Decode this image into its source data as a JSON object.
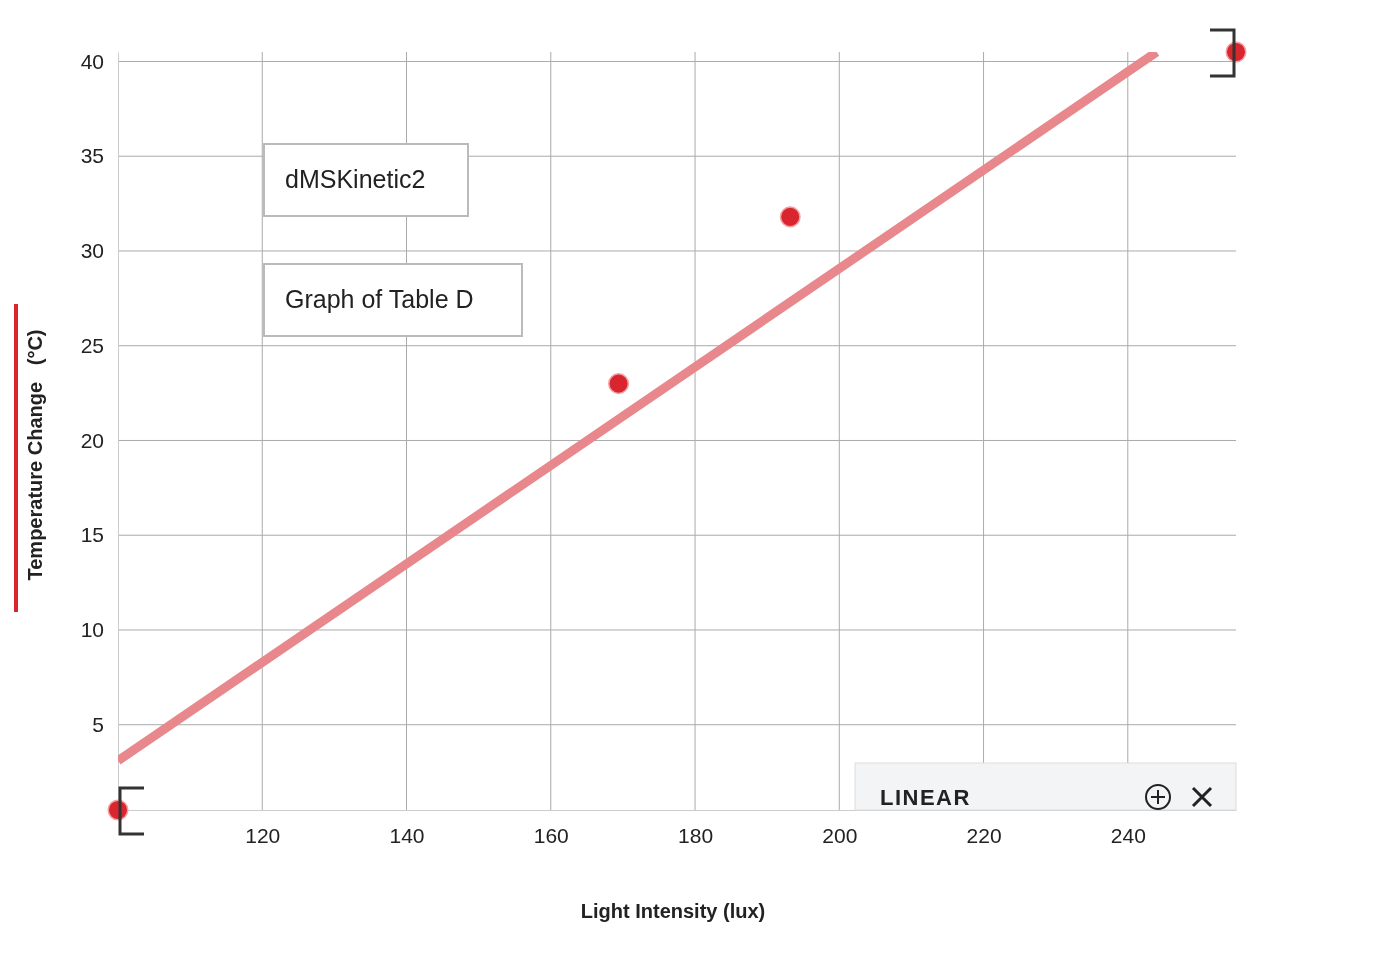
{
  "chart_data": {
    "type": "scatter",
    "xlabel": "Light Intensity (lux)",
    "ylabel": "Temperature Change   (°C)",
    "xlim": [
      100,
      255
    ],
    "ylim": [
      0.5,
      40.5
    ],
    "xticks": [
      120,
      140,
      160,
      180,
      200,
      220,
      240
    ],
    "yticks": [
      5,
      10,
      15,
      20,
      25,
      30,
      35,
      40
    ],
    "grid": true,
    "series": [
      {
        "color": "#d9262e",
        "marker": "circle",
        "x": [
          100,
          169.4,
          193.2,
          255
        ],
        "values": [
          0.5,
          23,
          31.8,
          40.5
        ]
      },
      {
        "type": "line",
        "color": "#e8878c",
        "x": [
          100,
          244
        ],
        "values": [
          3.1,
          40.5
        ],
        "marker": "none"
      }
    ],
    "annotations": [
      "dMSKinetic2",
      "Graph of Table D",
      "LINEAR"
    ]
  }
}
